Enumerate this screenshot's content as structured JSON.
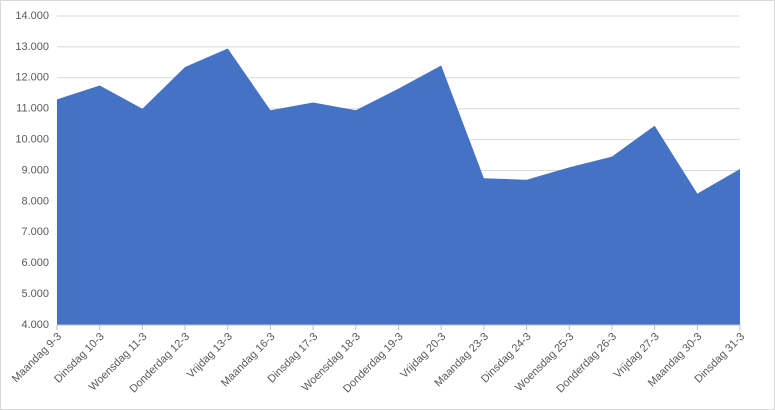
{
  "chart_data": {
    "type": "area",
    "categories": [
      "Maandag 9-3",
      "Dinsdag 10-3",
      "Woensdag 11-3",
      "Donderdag 12-3",
      "Vrijdag 13-3",
      "Maandag 16-3",
      "Dinsdag 17-3",
      "Woensdag 18-3",
      "Donderdag 19-3",
      "Vrijdag 20-3",
      "Maandag 23-3",
      "Dinsdag 24-3",
      "Woensdag 25-3",
      "Donderdag 26-3",
      "Vrijdag 27-3",
      "Maandag 30-3",
      "Dinsdag 31-3"
    ],
    "values": [
      11300,
      11750,
      11000,
      12350,
      12950,
      10950,
      11200,
      10950,
      11650,
      12400,
      8750,
      8700,
      9100,
      9450,
      10450,
      8250,
      9050
    ],
    "color": "#4472c4",
    "ylim": [
      4000,
      14000
    ],
    "yticks": [
      {
        "value": 4000,
        "label": "4.000"
      },
      {
        "value": 5000,
        "label": "5.000"
      },
      {
        "value": 6000,
        "label": "6.000"
      },
      {
        "value": 7000,
        "label": "7.000"
      },
      {
        "value": 8000,
        "label": "8.000"
      },
      {
        "value": 9000,
        "label": "9.000"
      },
      {
        "value": 10000,
        "label": "10.000"
      },
      {
        "value": 11000,
        "label": "11.000"
      },
      {
        "value": 12000,
        "label": "12.000"
      },
      {
        "value": 13000,
        "label": "13.000"
      },
      {
        "value": 14000,
        "label": "14.000"
      }
    ],
    "grid": true
  }
}
